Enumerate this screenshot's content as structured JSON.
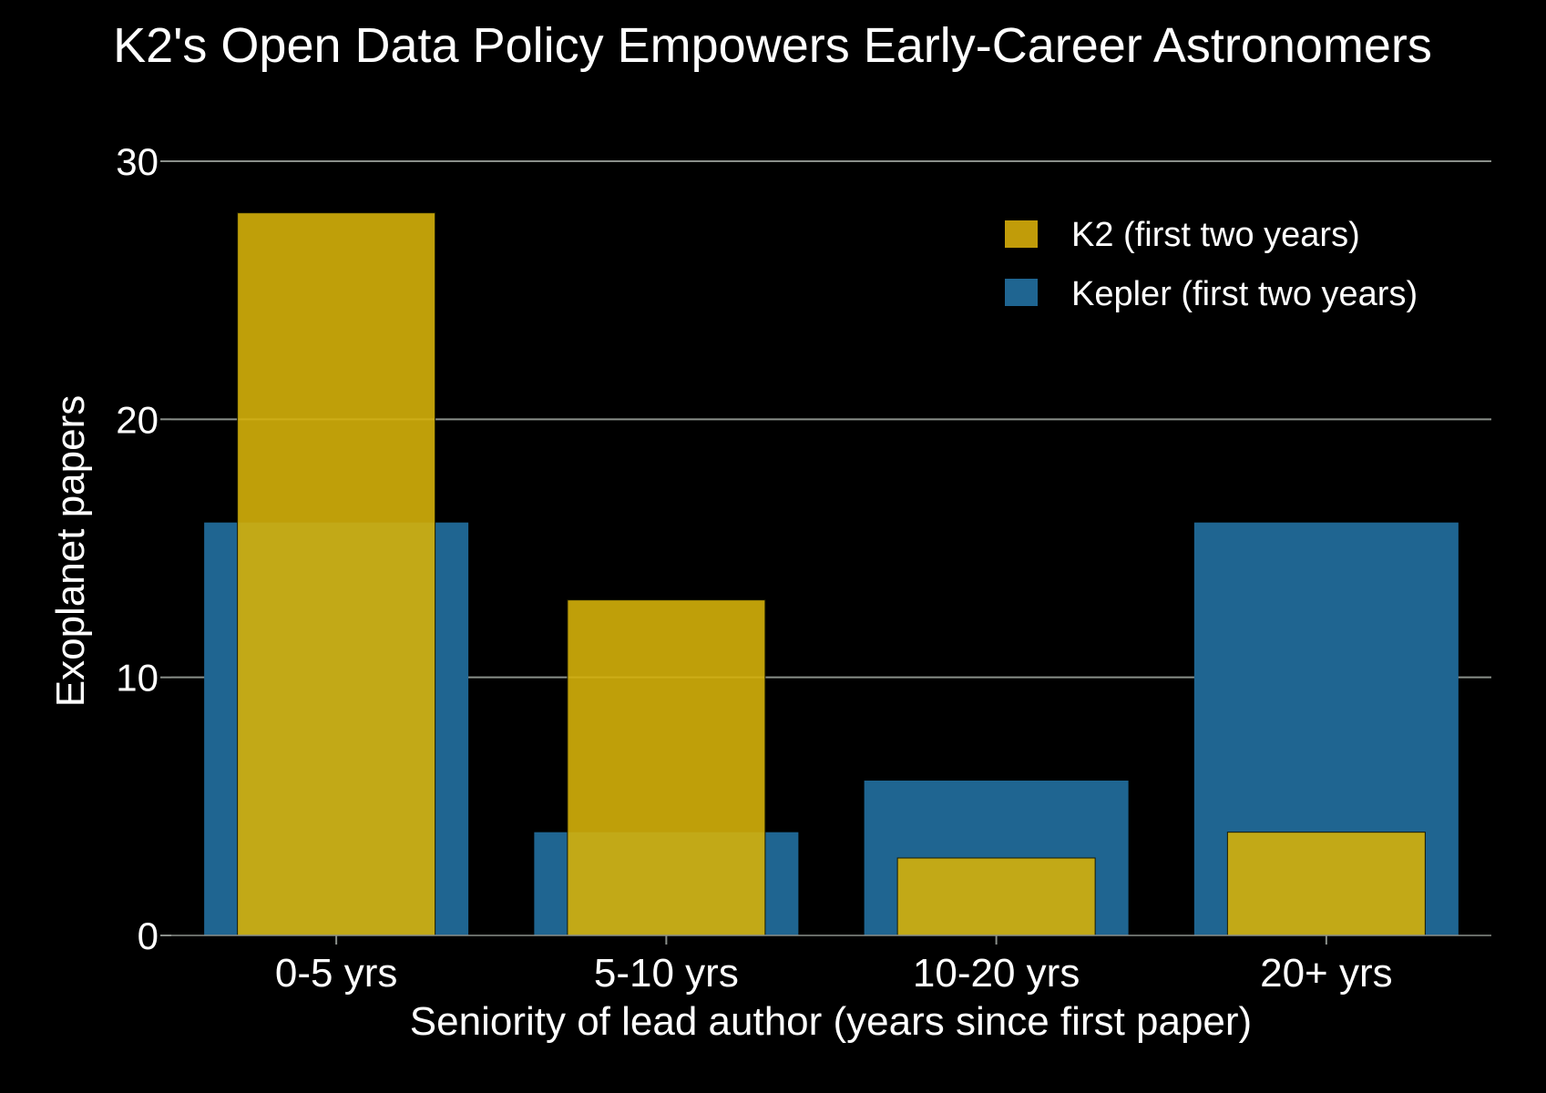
{
  "chart_data": {
    "type": "bar",
    "title": "K2's Open Data Policy Empowers Early-Career Astronomers",
    "xlabel": "Seniority of lead author (years since first paper)",
    "ylabel": "Exoplanet papers",
    "categories": [
      "0-5 yrs",
      "5-10 yrs",
      "10-20 yrs",
      "20+ yrs"
    ],
    "series": [
      {
        "name": "Kepler (first two years)",
        "values": [
          16,
          4,
          6,
          16
        ],
        "color": "#1f6591"
      },
      {
        "name": "K2 (first two years)",
        "values": [
          28,
          13,
          3,
          4
        ],
        "color": "#d4b00a"
      }
    ],
    "ylim": [
      0,
      30
    ],
    "yticks": [
      0,
      10,
      20,
      30
    ],
    "grid": true,
    "legend_position": "top-right",
    "background": "#000000",
    "text_color": "#ffffff",
    "grid_color": "#8a8f8a"
  }
}
